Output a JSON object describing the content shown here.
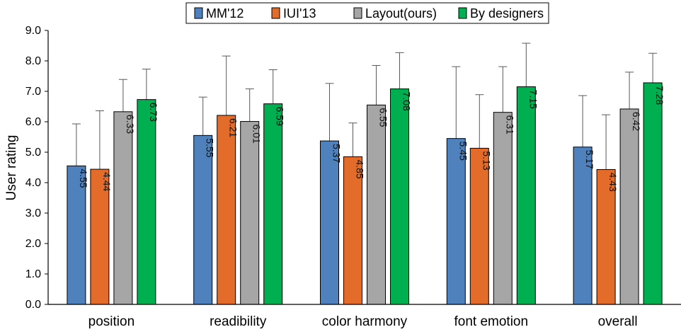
{
  "chart_data": {
    "type": "bar",
    "title": "",
    "xlabel": "",
    "ylabel": "User rating",
    "ylim": [
      0,
      9
    ],
    "yticks": [
      "0.0",
      "1.0",
      "2.0",
      "3.0",
      "4.0",
      "5.0",
      "6.0",
      "7.0",
      "8.0",
      "9.0"
    ],
    "grid": false,
    "legend_position": "top-center",
    "categories": [
      "position",
      "readibility",
      "color harmony",
      "font emotion",
      "overall"
    ],
    "series": [
      {
        "name": "MM'12",
        "color": "#4f81bd",
        "values": [
          4.55,
          5.55,
          5.37,
          5.45,
          5.17
        ],
        "labels": [
          "4.55",
          "5.55",
          "5.37",
          "5.45",
          "5.17"
        ],
        "error_upper": [
          5.93,
          6.81,
          7.26,
          7.81,
          6.86
        ]
      },
      {
        "name": "IUI'13",
        "color": "#e36c2a",
        "values": [
          4.44,
          6.21,
          4.85,
          5.13,
          4.43
        ],
        "labels": [
          "4.44",
          "6.21",
          "4.85",
          "5.13",
          "4.43"
        ],
        "error_upper": [
          6.36,
          8.16,
          5.96,
          6.89,
          6.23
        ]
      },
      {
        "name": "Layout(ours)",
        "color": "#a6a6a6",
        "values": [
          6.33,
          6.01,
          6.55,
          6.31,
          6.42
        ],
        "labels": [
          "6.33",
          "6.01",
          "6.55",
          "6.31",
          "6.42"
        ],
        "error_upper": [
          7.39,
          7.08,
          7.85,
          7.81,
          7.63
        ]
      },
      {
        "name": "By designers",
        "color": "#00b050",
        "values": [
          6.73,
          6.59,
          7.08,
          7.15,
          7.28
        ],
        "labels": [
          "6.73",
          "6.59",
          "7.08",
          "7.15",
          "7.28"
        ],
        "error_upper": [
          7.73,
          7.71,
          8.27,
          8.58,
          8.25
        ]
      }
    ]
  }
}
